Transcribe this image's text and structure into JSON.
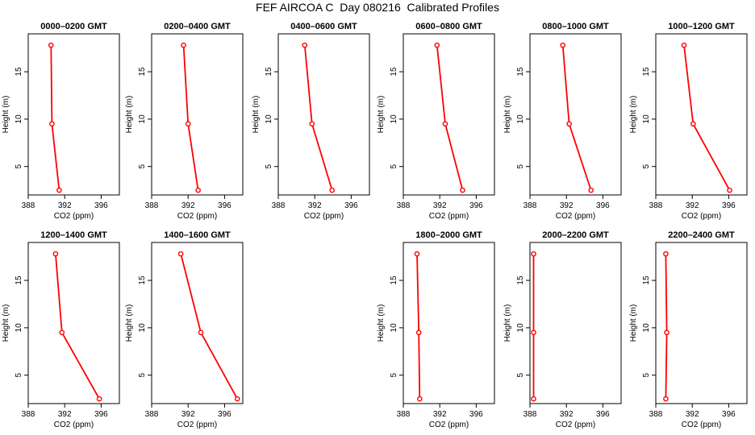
{
  "title": "FEF AIRCOA C  Day 080216  Calibrated Profiles",
  "colors": {
    "series": "#ff0000",
    "axis": "#000000"
  },
  "chart_data": [
    {
      "type": "line",
      "title": "0000–0200 GMT",
      "xlabel": "CO2 (ppm)",
      "ylabel": "Height (m)",
      "xlim": [
        388,
        398
      ],
      "ylim": [
        2,
        19
      ],
      "x_ticks": [
        "388",
        "392",
        "396"
      ],
      "y_ticks": [
        "5",
        "10",
        "15"
      ],
      "points": [
        {
          "x": 391.4,
          "y": 2.5
        },
        {
          "x": 390.6,
          "y": 9.5
        },
        {
          "x": 390.5,
          "y": 17.8
        }
      ]
    },
    {
      "type": "line",
      "title": "0200–0400 GMT",
      "xlabel": "CO2 (ppm)",
      "ylabel": "Height (m)",
      "xlim": [
        388,
        398
      ],
      "ylim": [
        2,
        19
      ],
      "x_ticks": [
        "388",
        "392",
        "396"
      ],
      "y_ticks": [
        "5",
        "10",
        "15"
      ],
      "points": [
        {
          "x": 393.1,
          "y": 2.5
        },
        {
          "x": 392.0,
          "y": 9.5
        },
        {
          "x": 391.5,
          "y": 17.8
        }
      ]
    },
    {
      "type": "line",
      "title": "0400–0600 GMT",
      "xlabel": "CO2 (ppm)",
      "ylabel": "Height (m)",
      "xlim": [
        388,
        398
      ],
      "ylim": [
        2,
        19
      ],
      "x_ticks": [
        "388",
        "392",
        "396"
      ],
      "y_ticks": [
        "5",
        "10",
        "15"
      ],
      "points": [
        {
          "x": 393.9,
          "y": 2.5
        },
        {
          "x": 391.7,
          "y": 9.5
        },
        {
          "x": 390.9,
          "y": 17.8
        }
      ]
    },
    {
      "type": "line",
      "title": "0600–0800 GMT",
      "xlabel": "CO2 (ppm)",
      "ylabel": "Height (m)",
      "xlim": [
        388,
        398
      ],
      "ylim": [
        2,
        19
      ],
      "x_ticks": [
        "388",
        "392",
        "396"
      ],
      "y_ticks": [
        "5",
        "10",
        "15"
      ],
      "points": [
        {
          "x": 394.5,
          "y": 2.5
        },
        {
          "x": 392.6,
          "y": 9.5
        },
        {
          "x": 391.7,
          "y": 17.8
        }
      ]
    },
    {
      "type": "line",
      "title": "0800–1000 GMT",
      "xlabel": "CO2 (ppm)",
      "ylabel": "Height (m)",
      "xlim": [
        388,
        398
      ],
      "ylim": [
        2,
        19
      ],
      "x_ticks": [
        "388",
        "392",
        "396"
      ],
      "y_ticks": [
        "5",
        "10",
        "15"
      ],
      "points": [
        {
          "x": 394.7,
          "y": 2.5
        },
        {
          "x": 392.3,
          "y": 9.5
        },
        {
          "x": 391.6,
          "y": 17.8
        }
      ]
    },
    {
      "type": "line",
      "title": "1000–1200 GMT",
      "xlabel": "CO2 (ppm)",
      "ylabel": "Height (m)",
      "xlim": [
        388,
        398
      ],
      "ylim": [
        2,
        19
      ],
      "x_ticks": [
        "388",
        "392",
        "396"
      ],
      "y_ticks": [
        "5",
        "10",
        "15"
      ],
      "points": [
        {
          "x": 396.1,
          "y": 2.5
        },
        {
          "x": 392.1,
          "y": 9.5
        },
        {
          "x": 391.1,
          "y": 17.8
        }
      ]
    },
    {
      "type": "line",
      "title": "1200–1400 GMT",
      "xlabel": "CO2 (ppm)",
      "ylabel": "Height (m)",
      "xlim": [
        388,
        398
      ],
      "ylim": [
        2,
        19
      ],
      "x_ticks": [
        "388",
        "392",
        "396"
      ],
      "y_ticks": [
        "5",
        "10",
        "15"
      ],
      "points": [
        {
          "x": 395.8,
          "y": 2.5
        },
        {
          "x": 391.7,
          "y": 9.5
        },
        {
          "x": 391.0,
          "y": 17.8
        }
      ]
    },
    {
      "type": "line",
      "title": "1400–1600 GMT",
      "xlabel": "CO2 (ppm)",
      "ylabel": "Height (m)",
      "xlim": [
        388,
        398
      ],
      "ylim": [
        2,
        19
      ],
      "x_ticks": [
        "388",
        "392",
        "396"
      ],
      "y_ticks": [
        "5",
        "10",
        "15"
      ],
      "points": [
        {
          "x": 397.4,
          "y": 2.5
        },
        {
          "x": 393.4,
          "y": 9.5
        },
        {
          "x": 391.2,
          "y": 17.8
        }
      ]
    },
    {
      "type": "line",
      "title": "1800–2000 GMT",
      "xlabel": "CO2 (ppm)",
      "ylabel": "Height (m)",
      "xlim": [
        388,
        398
      ],
      "ylim": [
        2,
        19
      ],
      "x_ticks": [
        "388",
        "392",
        "396"
      ],
      "y_ticks": [
        "5",
        "10",
        "15"
      ],
      "points": [
        {
          "x": 389.8,
          "y": 2.5
        },
        {
          "x": 389.7,
          "y": 9.5
        },
        {
          "x": 389.5,
          "y": 17.8
        }
      ]
    },
    {
      "type": "line",
      "title": "2000–2200 GMT",
      "xlabel": "CO2 (ppm)",
      "ylabel": "Height (m)",
      "xlim": [
        388,
        398
      ],
      "ylim": [
        2,
        19
      ],
      "x_ticks": [
        "388",
        "392",
        "396"
      ],
      "y_ticks": [
        "5",
        "10",
        "15"
      ],
      "points": [
        {
          "x": 388.4,
          "y": 2.5
        },
        {
          "x": 388.4,
          "y": 9.5
        },
        {
          "x": 388.4,
          "y": 17.8
        }
      ]
    },
    {
      "type": "line",
      "title": "2200–2400 GMT",
      "xlabel": "CO2 (ppm)",
      "ylabel": "Height (m)",
      "xlim": [
        388,
        398
      ],
      "ylim": [
        2,
        19
      ],
      "x_ticks": [
        "388",
        "392",
        "396"
      ],
      "y_ticks": [
        "5",
        "10",
        "15"
      ],
      "points": [
        {
          "x": 389.1,
          "y": 2.5
        },
        {
          "x": 389.2,
          "y": 9.5
        },
        {
          "x": 389.1,
          "y": 17.8
        }
      ]
    }
  ]
}
